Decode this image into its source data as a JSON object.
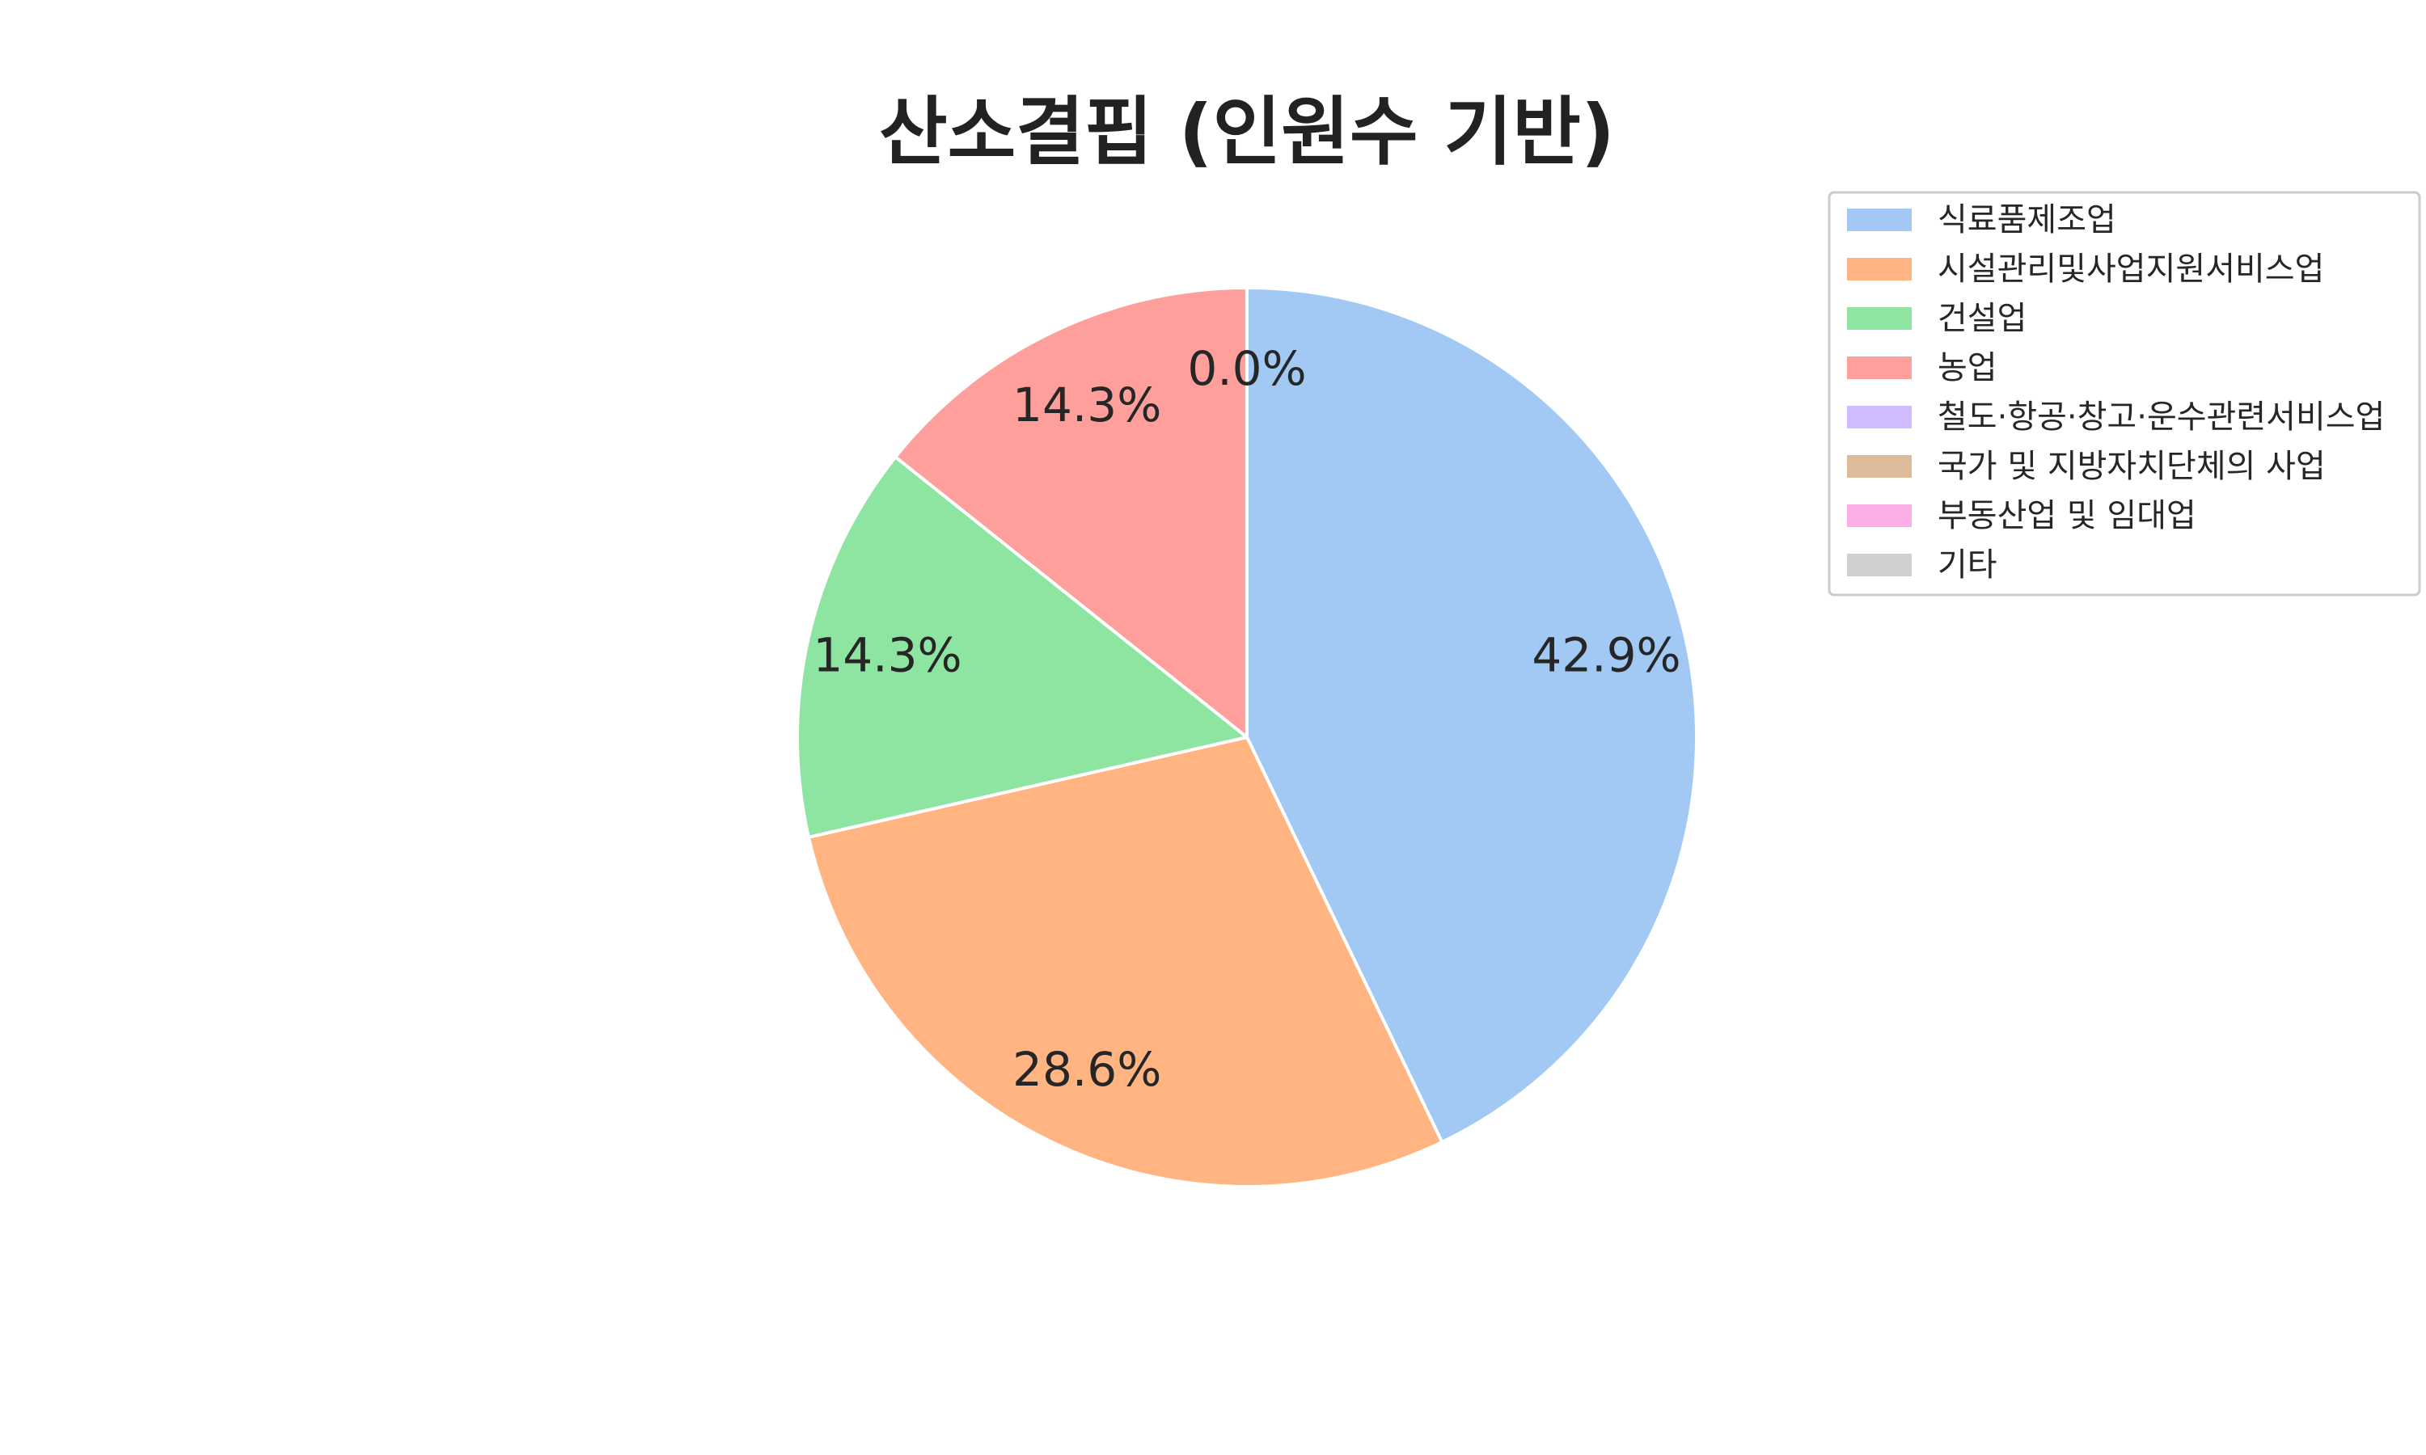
{
  "chart_data": {
    "type": "pie",
    "title": "산소결핍 (인원수 기반)",
    "start_angle_deg": 90,
    "direction": "clockwise",
    "legend_position": "top-right",
    "slices": [
      {
        "label": "식료품제조업",
        "value": 42.9,
        "pct_label": "42.9%",
        "color": "#a1c9f4"
      },
      {
        "label": "시설관리및사업지원서비스업",
        "value": 28.6,
        "pct_label": "28.6%",
        "color": "#ffb482"
      },
      {
        "label": "건설업",
        "value": 14.3,
        "pct_label": "14.3%",
        "color": "#8de5a1"
      },
      {
        "label": "농업",
        "value": 14.3,
        "pct_label": "14.3%",
        "color": "#ff9f9b"
      },
      {
        "label": "철도·항공·창고·운수관련서비스업",
        "value": 0.0,
        "pct_label": "0.0%",
        "color": "#d0bbff"
      },
      {
        "label": "국가 및 지방자치단체의 사업",
        "value": 0.0,
        "pct_label": "",
        "color": "#debb9b"
      },
      {
        "label": "부동산업 및 임대업",
        "value": 0.0,
        "pct_label": "",
        "color": "#fab0e4"
      },
      {
        "label": "기타",
        "value": 0.0,
        "pct_label": "",
        "color": "#cfcfcf"
      }
    ]
  }
}
